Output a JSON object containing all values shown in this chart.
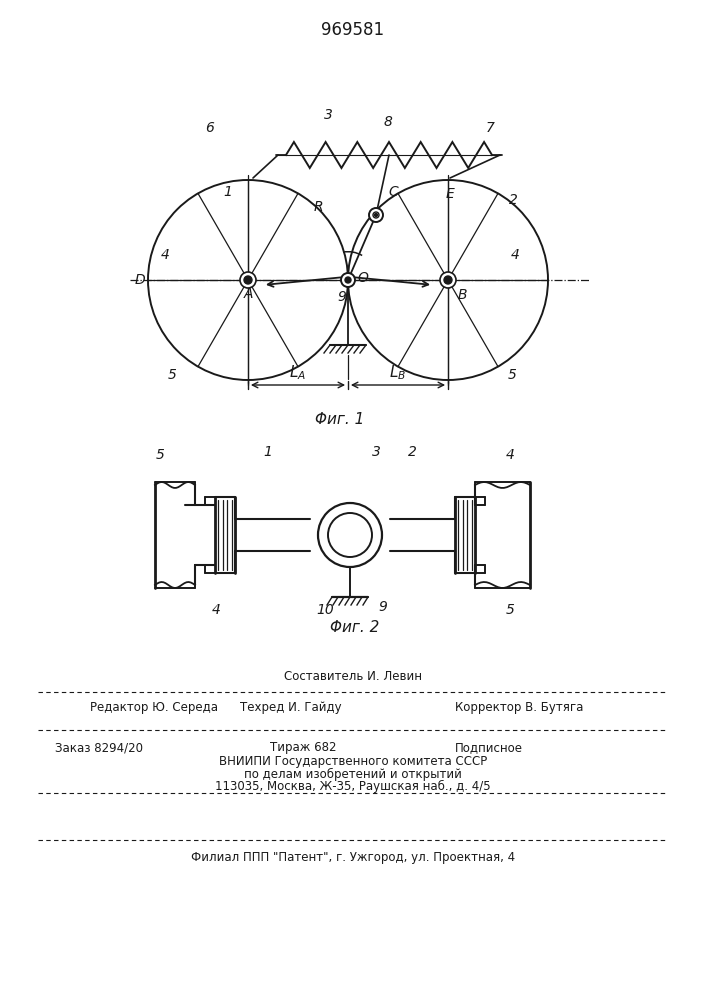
{
  "patent_number": "969581",
  "fig1_caption": "Φиг. 1",
  "fig2_caption": "Φиг. 2",
  "bg_color": "#ffffff",
  "line_color": "#1a1a1a",
  "editor_line": "Редактор Ю. Середа",
  "composer_line": "Составитель И. Левин",
  "techred_line": "Техред И. Гайду",
  "corrector_line": "Корректор В. Бутяга",
  "order_line": "Заказ 8294/20",
  "tirazh_line": "Тираж 682",
  "podpisnoe_line": "Подписное",
  "vniipи_line": "ВНИИПИ Государственного комитета СССР",
  "po_delam_line": "по делам изобретений и открытий",
  "address_line": "113035, Москва, Ж-35, Раушская наб., д. 4/5",
  "filial_line": "Филиал ППП \"Патент\", г. Ужгород, ул. Проектная, 4"
}
